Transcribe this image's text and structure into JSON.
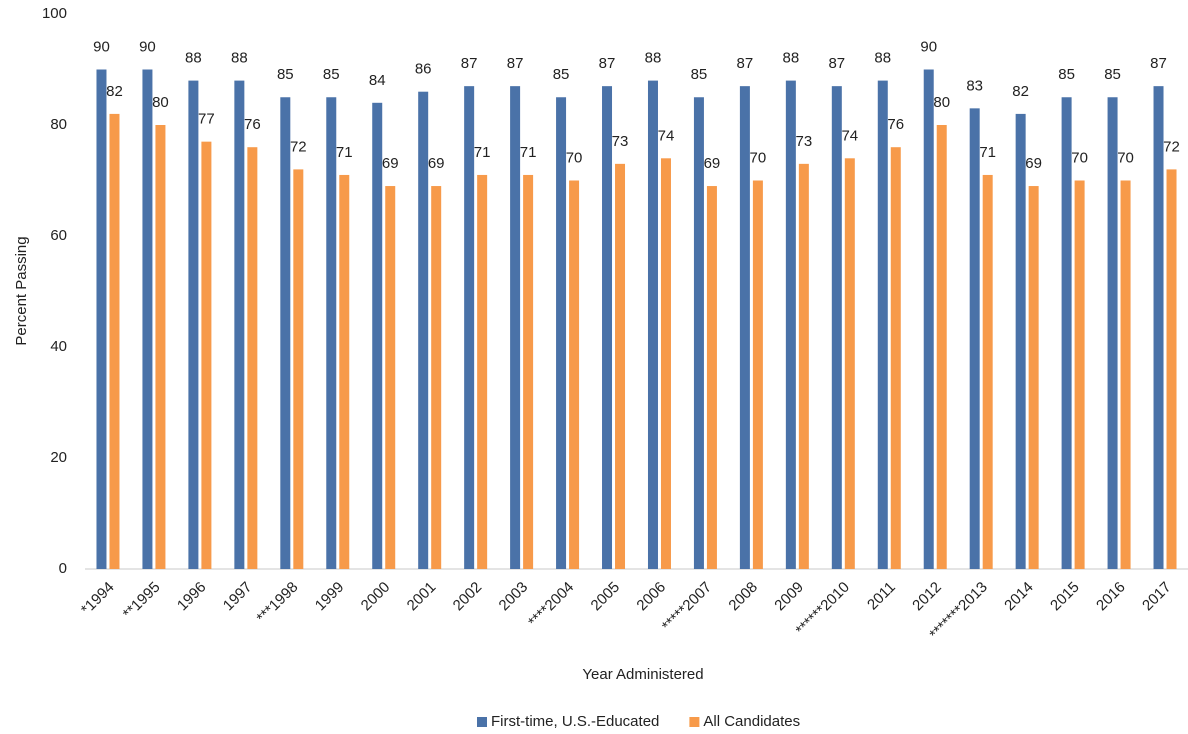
{
  "chart_data": {
    "type": "bar",
    "x_label": "Year Administered",
    "y_label": "Percent Passing",
    "categories": [
      "*1994",
      "**1995",
      "1996",
      "1997",
      "***1998",
      "1999",
      "2000",
      "2001",
      "2002",
      "2003",
      "****2004",
      "2005",
      "2006",
      "*****2007",
      "2008",
      "2009",
      "******2010",
      "2011",
      "2012",
      "*******2013",
      "2014",
      "2015",
      "2016",
      "2017"
    ],
    "series": [
      {
        "name": "First-time, U.S.-Educated",
        "color": "#4a72a8",
        "values": [
          90,
          90,
          88,
          88,
          85,
          85,
          84,
          86,
          87,
          87,
          85,
          87,
          88,
          85,
          87,
          88,
          87,
          88,
          90,
          83,
          82,
          85,
          85,
          87
        ]
      },
      {
        "name": "All Candidates",
        "color": "#f79a4a",
        "values": [
          82,
          80,
          77,
          76,
          72,
          71,
          69,
          69,
          71,
          71,
          70,
          73,
          74,
          69,
          70,
          73,
          74,
          76,
          80,
          71,
          69,
          70,
          70,
          72
        ]
      }
    ],
    "ylim": [
      0,
      100
    ],
    "yticks": [
      0,
      20,
      40,
      60,
      80,
      100
    ],
    "grid": false,
    "legend": "bottom"
  }
}
